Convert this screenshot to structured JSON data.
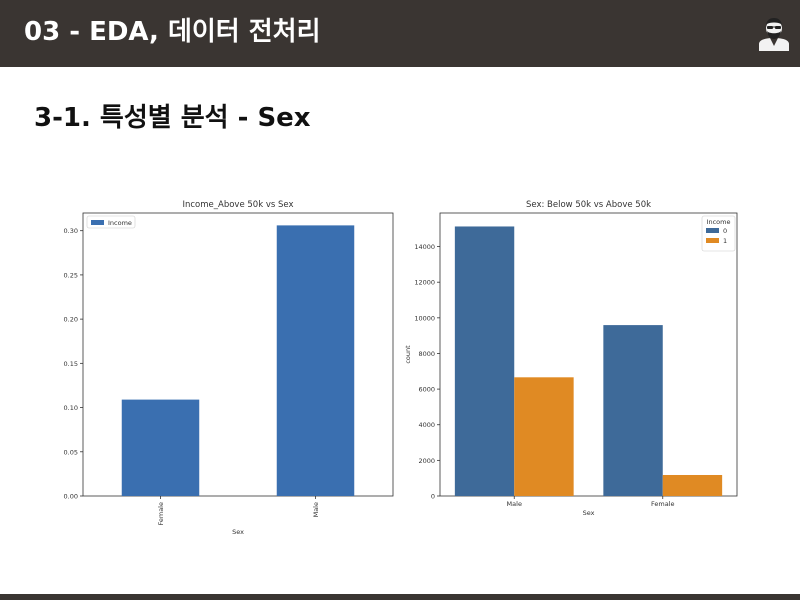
{
  "header": {
    "title": "03 - EDA, 데이터 전처리",
    "avatar_icon": "bearded-man-avatar-icon",
    "background": "#3a3532"
  },
  "section": {
    "title": "3-1. 특성별 분석 - Sex"
  },
  "chart_data": [
    {
      "type": "bar",
      "title": "Income_Above 50k vs Sex",
      "xlabel": "Sex",
      "ylabel": "",
      "categories": [
        "Female",
        "Male"
      ],
      "series": [
        {
          "name": "Income",
          "values": [
            0.109,
            0.306
          ],
          "color": "#3a6fb0"
        }
      ],
      "ylim": [
        0,
        0.32
      ],
      "yticks": [
        "0.00",
        "0.05",
        "0.10",
        "0.15",
        "0.20",
        "0.25",
        "0.30"
      ],
      "legend": "top-left",
      "grid": false
    },
    {
      "type": "bar",
      "title": "Sex: Below 50k vs Above 50k",
      "xlabel": "Sex",
      "ylabel": "count",
      "categories": [
        "Male",
        "Female"
      ],
      "legend_title": "Income",
      "series": [
        {
          "name": "0",
          "values": [
            15128,
            9592
          ],
          "color": "#3e6a99"
        },
        {
          "name": "1",
          "values": [
            6662,
            1179
          ],
          "color": "#e08a23"
        }
      ],
      "ylim": [
        0,
        15884
      ],
      "yticks": [
        "0",
        "2000",
        "4000",
        "6000",
        "8000",
        "10000",
        "12000",
        "14000"
      ],
      "legend": "top-right",
      "grid": false
    }
  ]
}
